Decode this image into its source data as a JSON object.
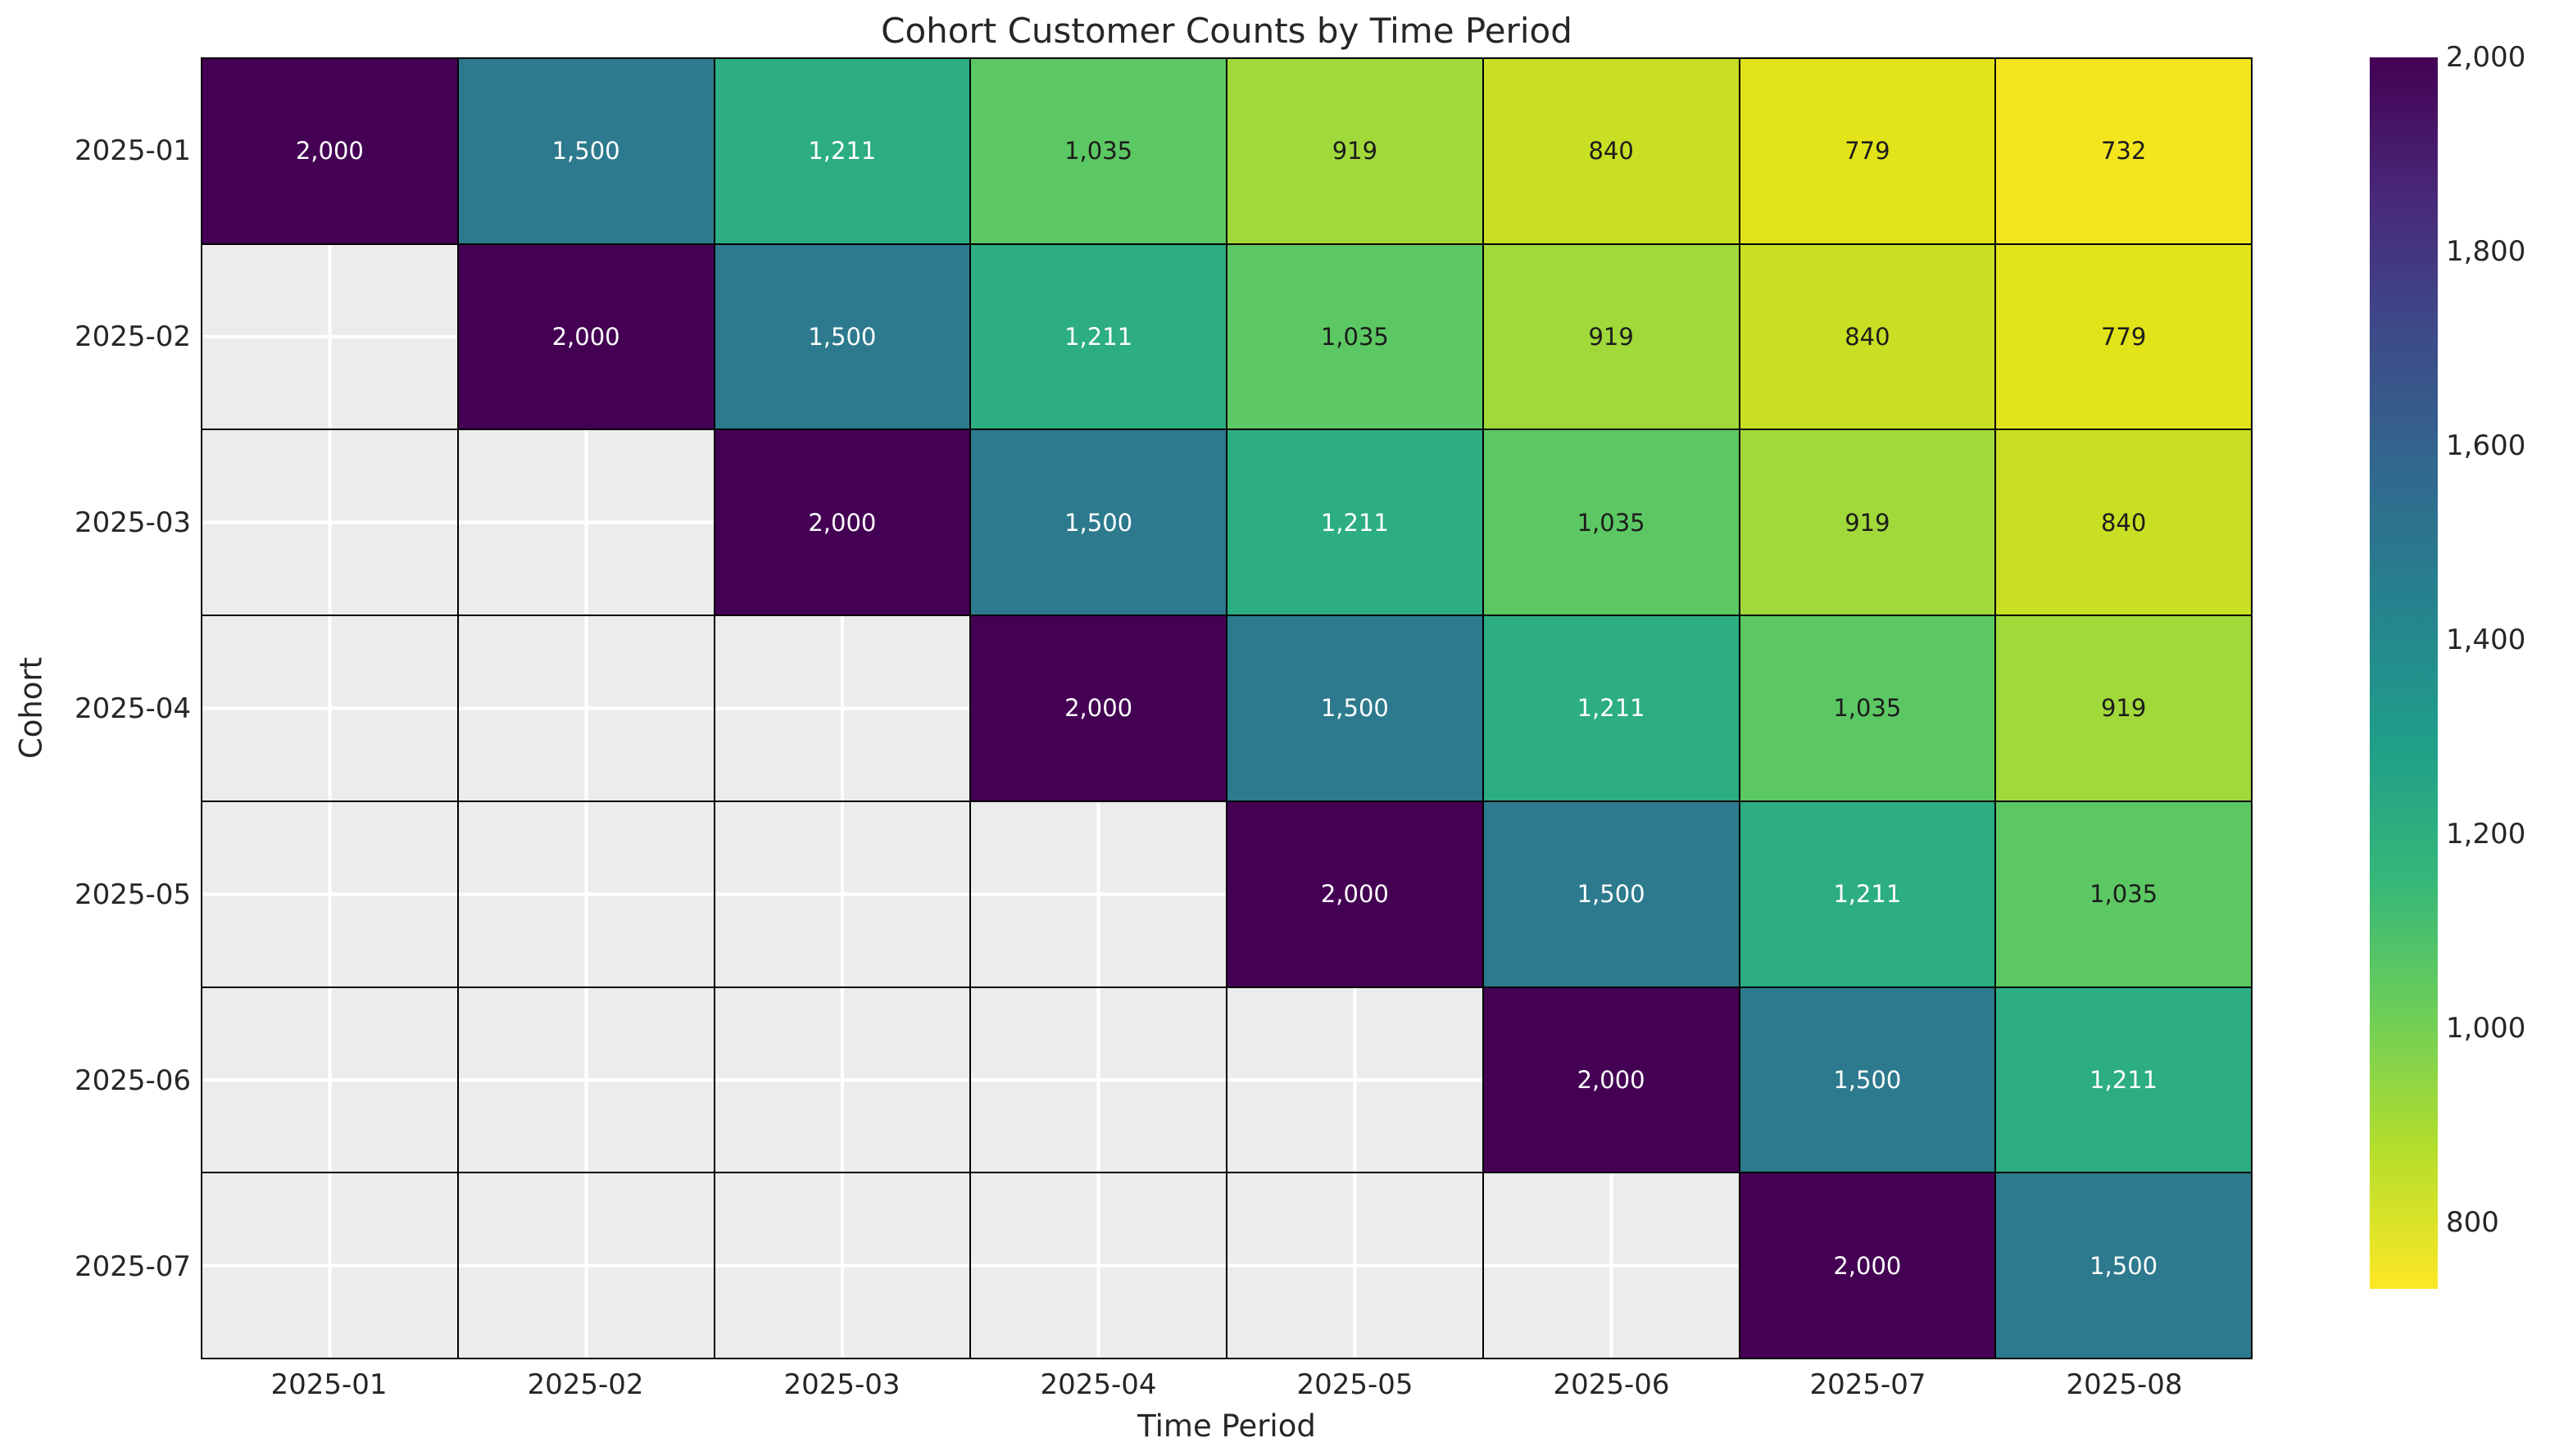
{
  "chart_data": {
    "type": "heatmap",
    "title": "Cohort Customer Counts by Time Period",
    "xlabel": "Time Period",
    "ylabel": "Cohort",
    "x_categories": [
      "2025-01",
      "2025-02",
      "2025-03",
      "2025-04",
      "2025-05",
      "2025-06",
      "2025-07",
      "2025-08"
    ],
    "y_categories": [
      "2025-01",
      "2025-02",
      "2025-03",
      "2025-04",
      "2025-05",
      "2025-06",
      "2025-07"
    ],
    "matrix": [
      [
        2000,
        1500,
        1211,
        1035,
        919,
        840,
        779,
        732
      ],
      [
        null,
        2000,
        1500,
        1211,
        1035,
        919,
        840,
        779
      ],
      [
        null,
        null,
        2000,
        1500,
        1211,
        1035,
        919,
        840
      ],
      [
        null,
        null,
        null,
        2000,
        1500,
        1211,
        1035,
        919
      ],
      [
        null,
        null,
        null,
        null,
        2000,
        1500,
        1211,
        1035
      ],
      [
        null,
        null,
        null,
        null,
        null,
        2000,
        1500,
        1211
      ],
      [
        null,
        null,
        null,
        null,
        null,
        null,
        2000,
        1500
      ]
    ],
    "cell_label_format": "thousands-comma",
    "colormap": "viridis_r",
    "value_colors": {
      "2000": "#440154",
      "1500": "#2d7a8e",
      "1211": "#2cad83",
      "1035": "#5cc863",
      "919": "#a1d93b",
      "840": "#c8df23",
      "779": "#e2e319",
      "732": "#f3e51e"
    },
    "annot_light_color": "#ffffff",
    "annot_dark_color": "#1c1c1c",
    "annot_white_min": 1100,
    "masked_cell_color": "#ececec",
    "grid_line_color_major": "#ffffff",
    "grid_line_color_minor": "#000000",
    "grid": true,
    "legend_position": "right",
    "colorbar": {
      "vmin": 732,
      "vmax": 2000,
      "tick_values": [
        2000,
        1800,
        1600,
        1400,
        1200,
        1000,
        800
      ],
      "tick_labels": [
        "2,000",
        "1,800",
        "1,600",
        "1,400",
        "1,200",
        "1,000",
        "800"
      ],
      "gradient_stops_top_to_bottom": [
        "#440154",
        "#482878",
        "#3e4a89",
        "#31688e",
        "#26828e",
        "#1f9e89",
        "#35b779",
        "#6ece58",
        "#b5de2b",
        "#fde725"
      ]
    }
  },
  "style": {
    "background": "#ffffff",
    "text_color": "#262626"
  }
}
